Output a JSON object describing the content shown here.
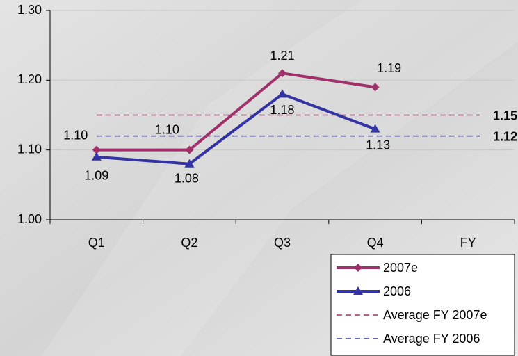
{
  "chart_data": {
    "type": "line",
    "categories": [
      "Q1",
      "Q2",
      "Q3",
      "Q4",
      "FY"
    ],
    "series": [
      {
        "name": "2007e",
        "color": "#a0306a",
        "marker": "diamond",
        "values": [
          1.1,
          1.1,
          1.21,
          1.19,
          null
        ],
        "value_labels": [
          "1.10",
          "1.10",
          "1.21",
          "1.19",
          null
        ]
      },
      {
        "name": "2006",
        "color": "#3333a3",
        "marker": "triangle",
        "values": [
          1.09,
          1.08,
          1.18,
          1.13,
          null
        ],
        "value_labels": [
          "1.09",
          "1.08",
          "1.18",
          "1.13",
          null
        ]
      }
    ],
    "reference_lines": [
      {
        "name": "Average FY 2007e",
        "value": 1.15,
        "color": "#a0306a"
      },
      {
        "name": "Average FY 2006",
        "value": 1.12,
        "color": "#3333a3"
      }
    ],
    "ylim": [
      1.0,
      1.3
    ],
    "yticks": [
      {
        "value": 1.0,
        "label": "1.00"
      },
      {
        "value": 1.1,
        "label": "1.10"
      },
      {
        "value": 1.2,
        "label": "1.20"
      },
      {
        "value": 1.3,
        "label": "1.30"
      }
    ],
    "grid": true,
    "legend": "bottom-right"
  }
}
